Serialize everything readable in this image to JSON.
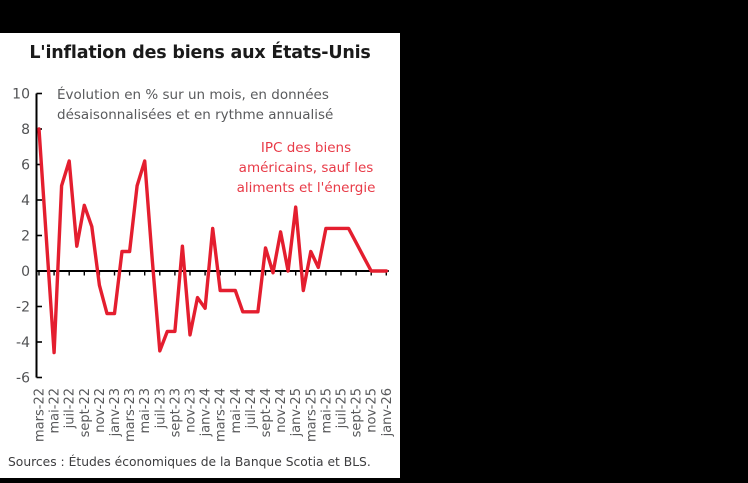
{
  "page": {
    "background": "#000000",
    "panel_background": "#ffffff"
  },
  "chart": {
    "title": "L'inflation des biens aux États-Unis",
    "subtitle": "Évolution en % sur un mois, en données\ndésaisonnalisées et en rythme annualisé",
    "annotation": "IPC des biens\naméricains, sauf les\naliments et l'énergie",
    "source": "Sources : Études économiques de la Banque Scotia et BLS.",
    "colors": {
      "line": "#e41e2f",
      "annotation_text": "#e83a47",
      "axis": "#000000",
      "tick_text": "#58595b",
      "subtitle_text": "#595a5c",
      "source_text": "#3d3d3f"
    }
  },
  "chart_data": {
    "type": "line",
    "title": "L'inflation des biens aux États-Unis",
    "xlabel": "",
    "ylabel": "",
    "ylim": [
      -6,
      10
    ],
    "grid": false,
    "legend_position": "annotation-top-right",
    "y_ticks": [
      10,
      8,
      6,
      4,
      2,
      0,
      -2,
      -4,
      -6
    ],
    "x_tick_labels": [
      "mars-22",
      "mai-22",
      "juil-22",
      "sept-22",
      "nov-22",
      "janv-23",
      "mars-23",
      "mai-23",
      "juil-23",
      "sept-23",
      "nov-23",
      "janv-24",
      "mars-24",
      "mai-24",
      "juil-24",
      "sept-24",
      "nov-24",
      "janv-25",
      "mars-25",
      "mai-25",
      "juil-25",
      "sept-25",
      "nov-25",
      "janv-26"
    ],
    "x": [
      "mars-22",
      "avr-22",
      "mai-22",
      "juin-22",
      "juil-22",
      "août-22",
      "sept-22",
      "oct-22",
      "nov-22",
      "déc-22",
      "janv-23",
      "févr-23",
      "mars-23",
      "avr-23",
      "mai-23",
      "juin-23",
      "juil-23",
      "août-23",
      "sept-23",
      "oct-23",
      "nov-23",
      "déc-23",
      "janv-24",
      "févr-24",
      "mars-24",
      "avr-24",
      "mai-24",
      "juin-24",
      "juil-24",
      "août-24",
      "sept-24",
      "oct-24",
      "nov-24",
      "déc-24",
      "janv-25",
      "févr-25",
      "mars-25",
      "avr-25",
      "mai-25",
      "juin-25",
      "juil-25",
      "août-25",
      "sept-25",
      "oct-25",
      "nov-25",
      "déc-25",
      "janv-26"
    ],
    "series": [
      {
        "name": "IPC des biens américains, sauf les aliments et l'énergie",
        "values": [
          8.0,
          1.7,
          -4.6,
          4.8,
          6.2,
          1.4,
          3.7,
          2.5,
          -0.8,
          -2.4,
          -2.4,
          1.1,
          1.1,
          4.8,
          6.2,
          0.6,
          -4.5,
          -3.4,
          -3.4,
          1.4,
          -3.6,
          -1.5,
          -2.1,
          2.4,
          -1.1,
          -1.1,
          -1.1,
          -2.3,
          -2.3,
          -2.3,
          1.3,
          -0.1,
          2.2,
          0.0,
          3.6,
          -1.1,
          1.1,
          0.2,
          2.4,
          2.4,
          2.4,
          2.4,
          1.6,
          0.8,
          0.0,
          0.0,
          0.0
        ]
      }
    ]
  }
}
